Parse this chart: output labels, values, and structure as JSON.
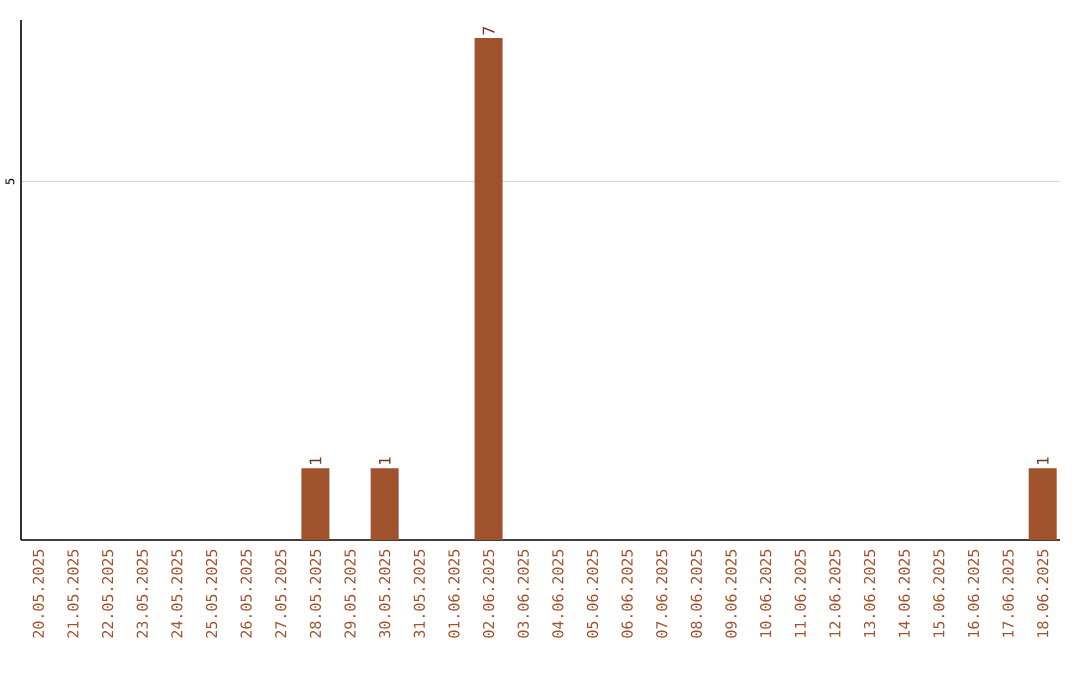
{
  "chart_data": {
    "type": "bar",
    "categories": [
      "20.05.2025",
      "21.05.2025",
      "22.05.2025",
      "23.05.2025",
      "24.05.2025",
      "25.05.2025",
      "26.05.2025",
      "27.05.2025",
      "28.05.2025",
      "29.05.2025",
      "30.05.2025",
      "31.05.2025",
      "01.06.2025",
      "02.06.2025",
      "03.06.2025",
      "04.06.2025",
      "05.06.2025",
      "06.06.2025",
      "07.06.2025",
      "08.06.2025",
      "09.06.2025",
      "10.06.2025",
      "11.06.2025",
      "12.06.2025",
      "13.06.2025",
      "14.06.2025",
      "15.06.2025",
      "16.06.2025",
      "17.06.2025",
      "18.06.2025"
    ],
    "values": [
      0,
      0,
      0,
      0,
      0,
      0,
      0,
      0,
      1,
      0,
      1,
      0,
      0,
      7,
      0,
      0,
      0,
      0,
      0,
      0,
      0,
      0,
      0,
      0,
      0,
      0,
      0,
      0,
      0,
      1
    ],
    "value_labels": [
      null,
      null,
      null,
      null,
      null,
      null,
      null,
      null,
      "1",
      null,
      "1",
      null,
      null,
      "7",
      null,
      null,
      null,
      null,
      null,
      null,
      null,
      null,
      null,
      null,
      null,
      null,
      null,
      null,
      null,
      "1"
    ],
    "color": "#a0522d",
    "ylim": [
      0,
      7.25
    ],
    "yticks": [
      5
    ],
    "grid": "y"
  }
}
